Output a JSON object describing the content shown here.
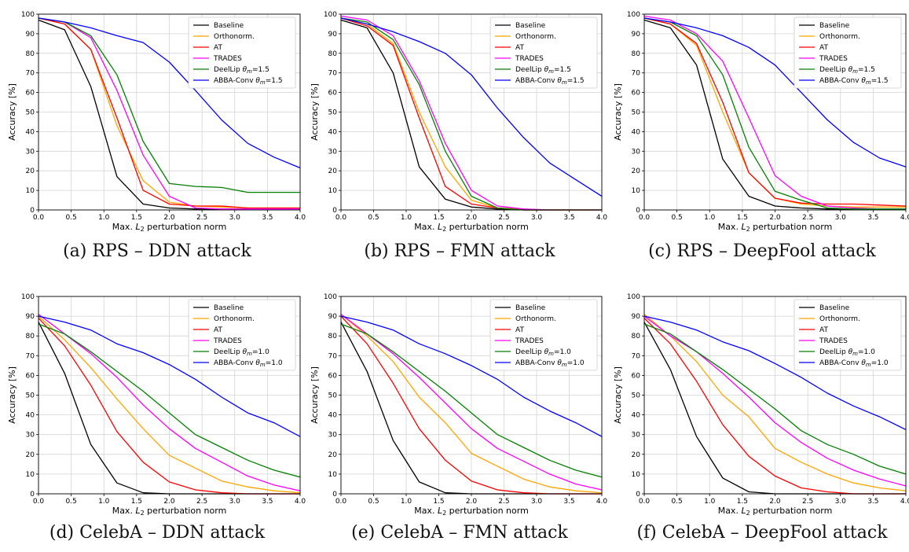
{
  "xlabel": "Max. L2 perturbation norm",
  "ylabel": "Accuracy [%]",
  "series_colors": {
    "Baseline": "#000000",
    "Orthonorm.": "#ffa500",
    "AT": "#ff0000",
    "TRADES": "#ff00ff",
    "DeelLip": "#008000",
    "ABBA-Conv": "#0000ff"
  },
  "x_ticks": [
    "0.0",
    "0.5",
    "1.0",
    "1.5",
    "2.0",
    "2.5",
    "3.0",
    "3.5",
    "4.0"
  ],
  "y_ticks": [
    "0",
    "10",
    "20",
    "30",
    "40",
    "50",
    "60",
    "70",
    "80",
    "90",
    "100"
  ],
  "xlim": [
    0,
    4
  ],
  "ylim": [
    0,
    100
  ],
  "grid": true,
  "legend_position": "top-right",
  "chart_data": [
    {
      "type": "line",
      "caption": "(a) RPS – DDN attack",
      "x": [
        0,
        0.4,
        0.8,
        1.2,
        1.6,
        2.0,
        2.4,
        2.8,
        3.2,
        3.6,
        4.0
      ],
      "series": [
        {
          "name": "Baseline",
          "values": [
            97,
            92,
            63,
            17,
            3,
            1,
            0.5,
            0.5,
            0.5,
            0.5,
            0.5
          ]
        },
        {
          "name": "Orthonorm.",
          "values": [
            98,
            95,
            82,
            43,
            15,
            4,
            2,
            1.5,
            1,
            1,
            1
          ]
        },
        {
          "name": "AT",
          "values": [
            98,
            95,
            82,
            47,
            10,
            3,
            2,
            2,
            1,
            1,
            1
          ]
        },
        {
          "name": "TRADES",
          "values": [
            98,
            96,
            88,
            61,
            28,
            7,
            1,
            0.5,
            0.5,
            0.5,
            0.5
          ]
        },
        {
          "name": "DeelLip θm=1.5",
          "values": [
            98,
            96,
            89,
            69,
            35,
            13.5,
            12,
            11.5,
            9,
            9,
            9
          ]
        },
        {
          "name": "ABBA-Conv θm=1.5",
          "values": [
            98,
            96,
            93,
            89,
            85.5,
            75.5,
            61,
            46,
            34,
            27,
            21.5
          ]
        }
      ]
    },
    {
      "type": "line",
      "caption": "(b) RPS – FMN attack",
      "x": [
        0,
        0.4,
        0.8,
        1.2,
        1.6,
        2.0,
        2.4,
        2.8,
        3.2,
        3.6,
        4.0
      ],
      "series": [
        {
          "name": "Baseline",
          "values": [
            97,
            93,
            70,
            22,
            5.5,
            1.5,
            0.5,
            0,
            0,
            0,
            0
          ]
        },
        {
          "name": "Orthonorm.",
          "values": [
            98,
            95,
            85,
            50,
            22,
            5,
            1,
            0.5,
            0,
            0,
            0
          ]
        },
        {
          "name": "AT",
          "values": [
            98,
            94,
            84,
            47,
            12,
            3,
            1,
            0,
            0,
            0,
            0
          ]
        },
        {
          "name": "TRADES",
          "values": [
            99,
            97,
            89,
            66,
            34,
            10,
            2,
            0.5,
            0,
            0,
            0
          ]
        },
        {
          "name": "DeelLip θm=1.5",
          "values": [
            98,
            96,
            87,
            64,
            30,
            7,
            1,
            0,
            0,
            0,
            0
          ]
        },
        {
          "name": "ABBA-Conv θm=1.5",
          "values": [
            98,
            95,
            91,
            86,
            80,
            69,
            52,
            37,
            24,
            15.5,
            7
          ]
        }
      ]
    },
    {
      "type": "line",
      "caption": "(c) RPS – DeepFool attack",
      "x": [
        0,
        0.4,
        0.8,
        1.2,
        1.6,
        2.0,
        2.4,
        2.8,
        3.2,
        3.6,
        4.0
      ],
      "series": [
        {
          "name": "Baseline",
          "values": [
            97,
            93,
            74,
            26,
            7,
            2,
            1,
            0.5,
            0.5,
            0.5,
            0.5
          ]
        },
        {
          "name": "Orthonorm.",
          "values": [
            98,
            95,
            84,
            50,
            19,
            6,
            3,
            2,
            1.5,
            1.5,
            1.5
          ]
        },
        {
          "name": "AT",
          "values": [
            98,
            95,
            85,
            55,
            19,
            6,
            3.5,
            3,
            3,
            2.5,
            2
          ]
        },
        {
          "name": "TRADES",
          "values": [
            99,
            97,
            90,
            76,
            47,
            17.5,
            7,
            2,
            1,
            0.5,
            0.5
          ]
        },
        {
          "name": "DeelLip θm=1.5",
          "values": [
            98,
            96,
            89,
            69,
            32,
            9.5,
            5,
            1,
            0.5,
            0.5,
            0.5
          ]
        },
        {
          "name": "ABBA-Conv θm=1.5",
          "values": [
            98,
            96,
            93,
            89,
            83,
            74,
            60,
            46,
            34.5,
            26.5,
            22
          ]
        }
      ]
    },
    {
      "type": "line",
      "caption": "(d) CelebA – DDN attack",
      "x": [
        0,
        0.4,
        0.8,
        1.2,
        1.6,
        2.0,
        2.4,
        2.8,
        3.2,
        3.6,
        4.0
      ],
      "series": [
        {
          "name": "Baseline",
          "values": [
            87,
            61,
            25,
            5.5,
            0.5,
            0,
            0,
            0,
            0,
            0,
            0
          ]
        },
        {
          "name": "Orthonorm.",
          "values": [
            90,
            78,
            64,
            48,
            33,
            19.5,
            13,
            6.5,
            3.5,
            1.5,
            0.5
          ]
        },
        {
          "name": "AT",
          "values": [
            89,
            75,
            55,
            31.5,
            16,
            6,
            2,
            0.5,
            0,
            0,
            0
          ]
        },
        {
          "name": "TRADES",
          "values": [
            91,
            81,
            71,
            59,
            45,
            33,
            23,
            16,
            9,
            4.5,
            1.5
          ]
        },
        {
          "name": "DeelLip θm=1.0",
          "values": [
            86,
            81,
            72,
            62,
            52,
            41,
            30,
            23.5,
            17,
            12,
            8.5
          ]
        },
        {
          "name": "ABBA-Conv θm=1.0",
          "values": [
            90,
            87,
            83,
            76,
            71.5,
            65.5,
            58,
            49,
            41,
            36,
            29
          ]
        }
      ]
    },
    {
      "type": "line",
      "caption": "(e) CelebA – FMN attack",
      "x": [
        0,
        0.4,
        0.8,
        1.2,
        1.6,
        2.0,
        2.4,
        2.8,
        3.2,
        3.6,
        4.0
      ],
      "series": [
        {
          "name": "Baseline",
          "values": [
            87,
            62,
            27,
            6,
            0.5,
            0,
            0,
            0,
            0,
            0,
            0
          ]
        },
        {
          "name": "Orthonorm.",
          "values": [
            91,
            80,
            67,
            49,
            36,
            20.5,
            14,
            7.5,
            3.5,
            1.5,
            0.5
          ]
        },
        {
          "name": "AT",
          "values": [
            90,
            76,
            56,
            33,
            17,
            6.5,
            2,
            0.5,
            0,
            0,
            0
          ]
        },
        {
          "name": "TRADES",
          "values": [
            91,
            81,
            71,
            59,
            46,
            33,
            23,
            16.5,
            10,
            5,
            2
          ]
        },
        {
          "name": "DeelLip θm=1.0",
          "values": [
            86,
            81,
            72,
            62,
            52,
            41,
            30,
            23.5,
            17,
            12,
            8.5
          ]
        },
        {
          "name": "ABBA-Conv θm=1.0",
          "values": [
            90,
            87,
            83,
            76,
            71,
            65,
            58,
            49,
            42,
            36,
            29
          ]
        }
      ]
    },
    {
      "type": "line",
      "caption": "(f) CelebA – DeepFool attack",
      "x": [
        0,
        0.4,
        0.8,
        1.2,
        1.6,
        2.0,
        2.4,
        2.8,
        3.2,
        3.6,
        4.0
      ],
      "series": [
        {
          "name": "Baseline",
          "values": [
            87,
            63,
            29,
            8,
            1,
            0,
            0,
            0,
            0,
            0,
            0
          ]
        },
        {
          "name": "Orthonorm.",
          "values": [
            91,
            80,
            67,
            50,
            39,
            23,
            16,
            10,
            5.5,
            3,
            1.5
          ]
        },
        {
          "name": "AT",
          "values": [
            89,
            76,
            57,
            35,
            19,
            9,
            3,
            1,
            0,
            0,
            0
          ]
        },
        {
          "name": "TRADES",
          "values": [
            90,
            80,
            72,
            61,
            49,
            36,
            26,
            18,
            12,
            7.5,
            4
          ]
        },
        {
          "name": "DeelLip θm=1.0",
          "values": [
            86,
            81,
            72,
            63,
            53,
            43,
            32,
            25,
            20,
            14,
            10
          ]
        },
        {
          "name": "ABBA-Conv θm=1.0",
          "values": [
            90,
            87,
            83,
            77,
            72.5,
            66,
            59,
            51,
            44.5,
            39,
            32.5
          ]
        }
      ]
    }
  ]
}
